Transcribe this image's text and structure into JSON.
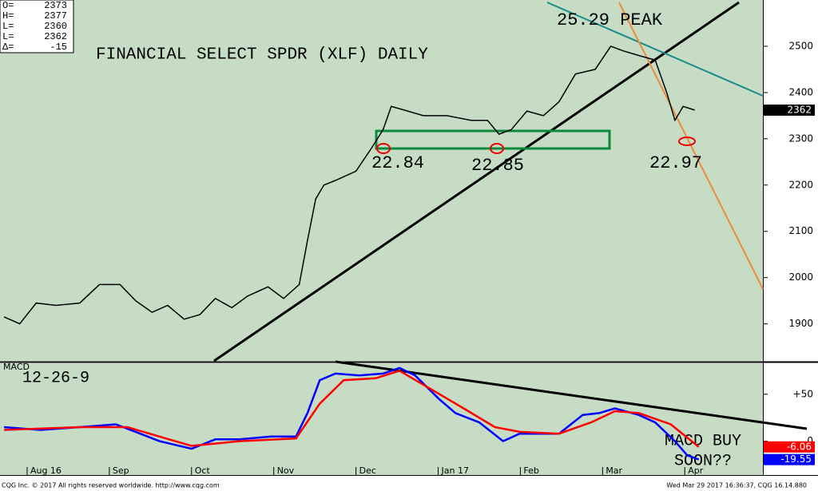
{
  "ohlc_box": {
    "labels": [
      "O=",
      "H=",
      "L=",
      "L=",
      "Δ="
    ],
    "values": [
      2373,
      2377,
      2360,
      2362,
      -15
    ]
  },
  "chart_data": [
    {
      "type": "line",
      "title": "FINANCIAL SELECT SPDR (XLF) DAILY",
      "annotations": [
        "25.29 PEAK",
        "22.84",
        "22.85",
        "22.97"
      ],
      "xlim": [
        -0.33,
        8.95
      ],
      "ylim": [
        1820,
        2600
      ],
      "yticks": [
        1900,
        2000,
        2100,
        2200,
        2300,
        2400,
        2500
      ],
      "series": [
        {
          "color": "#000000",
          "x": [
            -0.28,
            -0.09,
            0.11,
            0.35,
            0.64,
            0.88,
            1.13,
            1.32,
            1.52,
            1.71,
            1.91,
            2.1,
            2.29,
            2.49,
            2.68,
            2.93,
            3.12,
            3.31,
            3.41,
            3.51,
            3.61,
            3.75,
            4.0,
            4.19,
            4.33,
            4.43,
            4.63,
            4.82,
            5.11,
            5.4,
            5.6,
            5.74,
            5.89,
            6.08,
            6.28,
            6.47,
            6.67,
            6.91,
            7.1,
            7.25,
            7.44,
            7.64,
            7.78,
            7.88,
            7.98,
            8.12
          ],
          "values": [
            1915,
            1900,
            1945,
            1940,
            1945,
            1985,
            1985,
            1950,
            1925,
            1940,
            1910,
            1920,
            1955,
            1935,
            1960,
            1980,
            1955,
            1985,
            2080,
            2170,
            2200,
            2210,
            2230,
            2280,
            2320,
            2370,
            2360,
            2350,
            2350,
            2340,
            2340,
            2310,
            2320,
            2360,
            2350,
            2380,
            2440,
            2450,
            2500,
            2490,
            2480,
            2470,
            2400,
            2340,
            2370,
            2362
          ]
        }
      ]
    },
    {
      "type": "line",
      "title": "MACD",
      "subtitle": "12-26-9",
      "annotations": [
        "MACD BUY",
        "SOON??"
      ],
      "xlim": [
        -0.33,
        8.95
      ],
      "ylim": [
        -36,
        83
      ],
      "yticks": [
        {
          "value": 50,
          "label": "+50"
        },
        0
      ],
      "xticks": [
        {
          "value": 0,
          "label": "Aug 16"
        },
        {
          "value": 1,
          "label": "Sep"
        },
        {
          "value": 2,
          "label": "Oct"
        },
        {
          "value": 3,
          "label": "Nov"
        },
        {
          "value": 4,
          "label": "Dec"
        },
        {
          "value": 5,
          "label": "Jan 17"
        },
        {
          "value": 6,
          "label": "Feb"
        },
        {
          "value": 7,
          "label": "Mar"
        },
        {
          "value": 8,
          "label": "Apr"
        }
      ],
      "series": [
        {
          "color": "#0000ff",
          "x": [
            -0.28,
            0.16,
            0.64,
            1.08,
            1.32,
            1.61,
            2.0,
            2.29,
            2.58,
            2.97,
            3.27,
            3.41,
            3.56,
            3.75,
            4.04,
            4.33,
            4.53,
            4.72,
            5.01,
            5.21,
            5.5,
            5.79,
            5.99,
            6.28,
            6.47,
            6.76,
            6.96,
            7.15,
            7.44,
            7.64,
            7.88,
            8.03,
            8.17
          ],
          "values": [
            15,
            12,
            15,
            18,
            10,
            0,
            -8,
            2,
            2,
            5,
            5,
            30,
            65,
            72,
            70,
            72,
            78,
            70,
            45,
            30,
            20,
            0,
            8,
            8,
            8,
            28,
            30,
            35,
            28,
            20,
            0,
            -15,
            -19.55
          ]
        },
        {
          "color": "#ff0000",
          "x": [
            -0.28,
            0.64,
            1.22,
            1.61,
            2.0,
            2.58,
            3.27,
            3.56,
            3.85,
            4.24,
            4.53,
            4.92,
            5.31,
            5.69,
            5.99,
            6.47,
            6.86,
            7.15,
            7.44,
            7.83,
            8.17
          ],
          "values": [
            12,
            15,
            15,
            5,
            -5,
            0,
            3,
            40,
            65,
            67,
            75,
            55,
            35,
            15,
            10,
            8,
            20,
            32,
            30,
            18,
            -6.06
          ]
        }
      ]
    }
  ],
  "footer": {
    "left": "CQG Inc. © 2017 All rights reserved worldwide. http://www.cqg.com",
    "right": "Wed Mar 29 2017 16:36:37, CQG 16.14.880"
  }
}
